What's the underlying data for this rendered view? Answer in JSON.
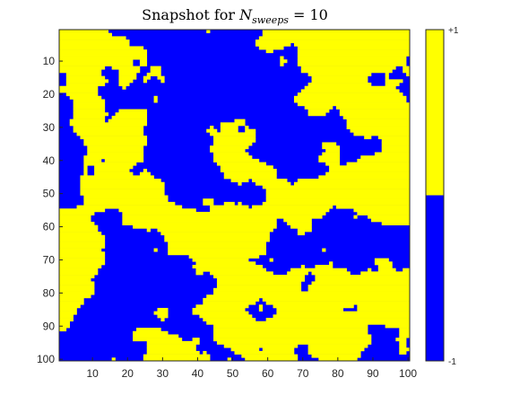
{
  "chart_data": {
    "type": "heatmap",
    "title": {
      "prefix": "Snapshot for ",
      "variable": "N",
      "subscript": "sweeps",
      "suffix": " = 10"
    },
    "xlabel": "",
    "ylabel": "",
    "grid_size": [
      100,
      100
    ],
    "xlim": [
      0.5,
      100.5
    ],
    "ylim": [
      0.5,
      100.5
    ],
    "y_reversed": true,
    "x_ticks": [
      10,
      20,
      30,
      40,
      50,
      60,
      70,
      80,
      90,
      100
    ],
    "y_ticks": [
      10,
      20,
      30,
      40,
      50,
      60,
      70,
      80,
      90,
      100
    ],
    "grid": false,
    "colormap": [
      {
        "value": -1,
        "color": "#0000ff"
      },
      {
        "value": 1,
        "color": "#ffff00"
      }
    ],
    "colorbar": {
      "placement": "right",
      "top_label": "+1",
      "bottom_label": "-1"
    },
    "note": "Ising spin lattice after 10 Monte Carlo sweeps; each cell is a spin of value -1 (blue) or +1 (yellow), clustered into domains of roughly equal area."
  }
}
